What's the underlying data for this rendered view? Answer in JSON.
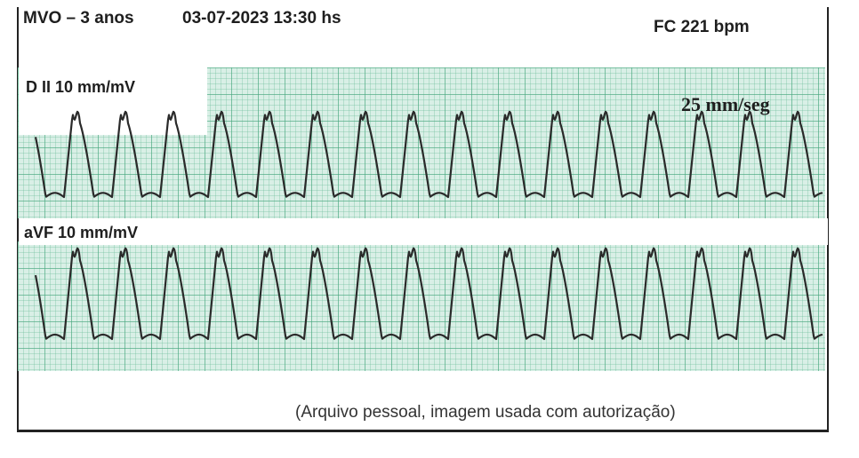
{
  "header": {
    "patient": "MVO – 3 anos",
    "datetime": "03-07-2023  13:30 hs",
    "heart_rate": "FC 221 bpm"
  },
  "leads": [
    {
      "label": "D II 10 mm/mV"
    },
    {
      "label": "aVF 10 mm/mV"
    }
  ],
  "paper_speed": "25  mm/seg",
  "caption": "(Arquivo pessoal, imagem usada com autorização)",
  "colors": {
    "grid_background": "#d9efe6",
    "grid_lines": "#46a57d",
    "trace": "#2a2a2a"
  }
}
